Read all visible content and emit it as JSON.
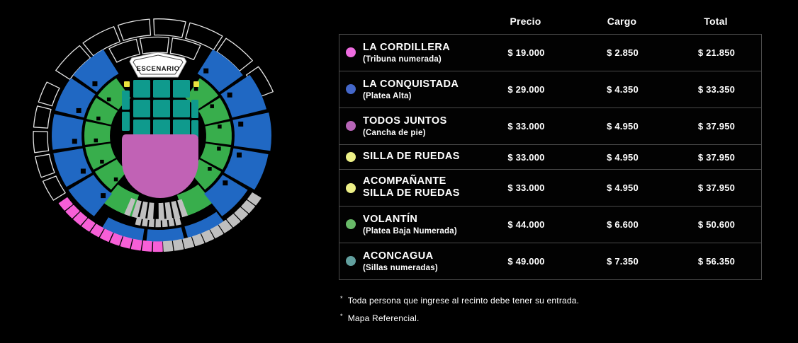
{
  "map": {
    "stage_label": "ESCENARIO",
    "colors": {
      "cordillera": "#f75fd7",
      "conquistada": "#2068c3",
      "todos_juntos": "#c162b5",
      "silla_de_ruedas": "#e9e23e",
      "volantin": "#38ae4c",
      "aconcagua": "#0f9a8d",
      "unavailable": "#bfbfbf",
      "outline": "#e6e6e6"
    }
  },
  "table": {
    "headers": [
      "Precio",
      "Cargo",
      "Total"
    ],
    "rows": [
      {
        "name": "LA CORDILLERA",
        "name_line2": "",
        "subtitle": "(Tribuna numerada)",
        "precio": "$ 19.000",
        "cargo": "$ 2.850",
        "total": "$ 21.850",
        "color": "#ee6ce0"
      },
      {
        "name": "LA CONQUISTADA",
        "name_line2": "",
        "subtitle": "(Platea Alta)",
        "precio": "$ 29.000",
        "cargo": "$ 4.350",
        "total": "$ 33.350",
        "color": "#4467c9"
      },
      {
        "name": "TODOS JUNTOS",
        "name_line2": "",
        "subtitle": "(Cancha de pie)",
        "precio": "$ 33.000",
        "cargo": "$ 4.950",
        "total": "$ 37.950",
        "color": "#b765b7"
      },
      {
        "name": "SILLA DE RUEDAS",
        "name_line2": "",
        "subtitle": "",
        "precio": "$ 33.000",
        "cargo": "$ 4.950",
        "total": "$ 37.950",
        "color": "#edf087"
      },
      {
        "name": "ACOMPAÑANTE",
        "name_line2": "SILLA DE RUEDAS",
        "subtitle": "",
        "precio": "$ 33.000",
        "cargo": "$ 4.950",
        "total": "$ 37.950",
        "color": "#edf087"
      },
      {
        "name": "VOLANTÍN",
        "name_line2": "",
        "subtitle": "(Platea Baja Numerada)",
        "precio": "$ 44.000",
        "cargo": "$ 6.600",
        "total": "$ 50.600",
        "color": "#68ba68"
      },
      {
        "name": "ACONCAGUA",
        "name_line2": "",
        "subtitle": "(Sillas numeradas)",
        "precio": "$ 49.000",
        "cargo": "$ 7.350",
        "total": "$ 56.350",
        "color": "#62a09f"
      }
    ]
  },
  "footnotes": [
    "Toda persona que ingrese al recinto debe tener su entrada.",
    "Mapa Referencial."
  ]
}
